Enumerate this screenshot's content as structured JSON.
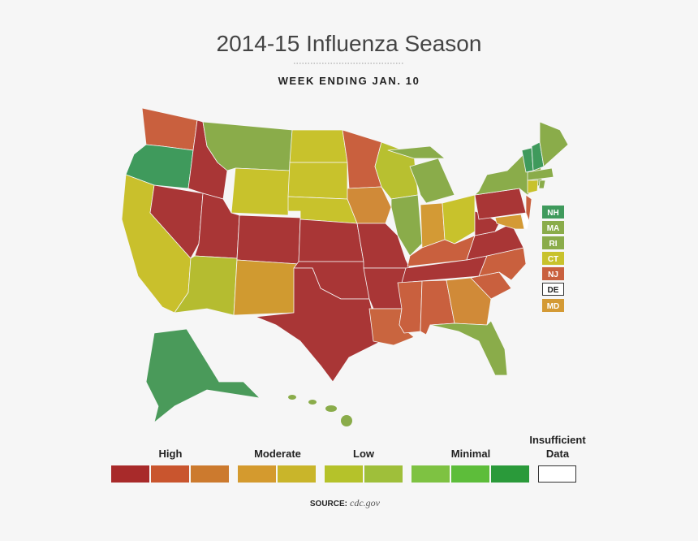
{
  "header": {
    "title": "2014-15 Influenza Season",
    "subtitle": "WEEK ENDING JAN. 10"
  },
  "map": {
    "state_labels": [
      "NH",
      "MA",
      "RI",
      "CT",
      "NJ",
      "DE",
      "MD"
    ]
  },
  "legend": {
    "levels": [
      "High",
      "Moderate",
      "Low",
      "Minimal"
    ],
    "insufficient": [
      "Insufficient",
      "Data"
    ]
  },
  "source": {
    "label": "SOURCE:",
    "text": "cdc.gov"
  }
}
